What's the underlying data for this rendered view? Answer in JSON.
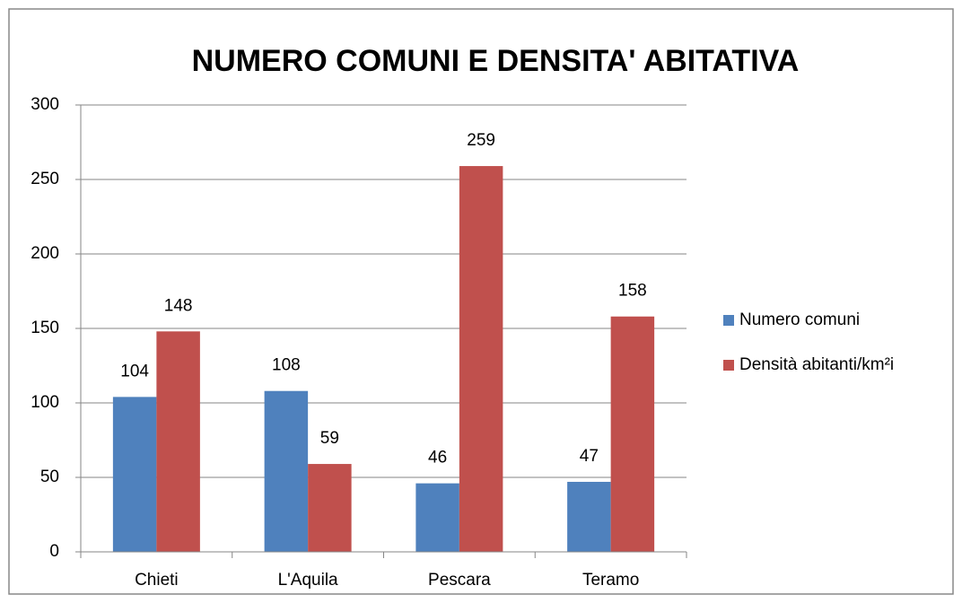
{
  "chart_data": {
    "type": "bar",
    "title": "NUMERO COMUNI E DENSITA' ABITATIVA",
    "categories": [
      "Chieti",
      "L'Aquila",
      "Pescara",
      "Teramo"
    ],
    "series": [
      {
        "name": "Numero comuni",
        "color": "#4f81bd",
        "values": [
          104,
          108,
          46,
          47
        ]
      },
      {
        "name": "Densità abitanti/km²i",
        "color": "#c0504d",
        "values": [
          148,
          59,
          259,
          158
        ]
      }
    ],
    "ylim": [
      0,
      300
    ],
    "yticks": [
      0,
      50,
      100,
      150,
      200,
      250,
      300
    ],
    "grid": true,
    "legend": "right"
  }
}
